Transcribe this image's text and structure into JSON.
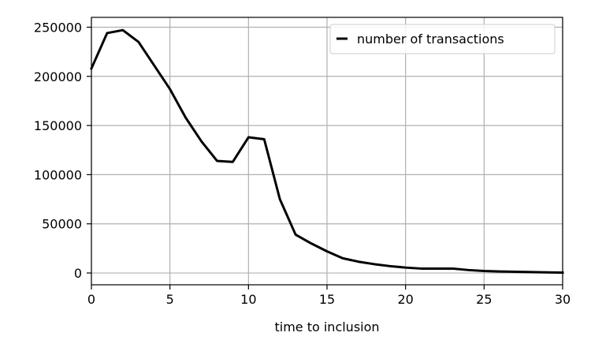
{
  "chart_data": {
    "type": "line",
    "title": "",
    "xlabel": "time to inclusion",
    "ylabel": "",
    "xlim": [
      0,
      30
    ],
    "ylim": [
      -12000,
      260000
    ],
    "xticks": [
      0,
      5,
      10,
      15,
      20,
      25,
      30
    ],
    "yticks": [
      0,
      50000,
      100000,
      150000,
      200000,
      250000
    ],
    "grid": true,
    "legend_position": "top-right",
    "series": [
      {
        "name": "number of transactions",
        "color": "#000000",
        "x": [
          0,
          1,
          2,
          3,
          4,
          5,
          6,
          7,
          8,
          9,
          10,
          11,
          12,
          13,
          14,
          15,
          16,
          17,
          18,
          19,
          20,
          21,
          22,
          23,
          24,
          25,
          26,
          27,
          28,
          29,
          30
        ],
        "y": [
          208000,
          244000,
          247000,
          235000,
          211000,
          187000,
          158000,
          134000,
          114000,
          113000,
          138000,
          136000,
          75000,
          39000,
          30000,
          22000,
          15000,
          11500,
          9000,
          7000,
          5500,
          4500,
          4500,
          4500,
          3000,
          2000,
          1500,
          1200,
          900,
          600,
          400
        ]
      }
    ]
  }
}
